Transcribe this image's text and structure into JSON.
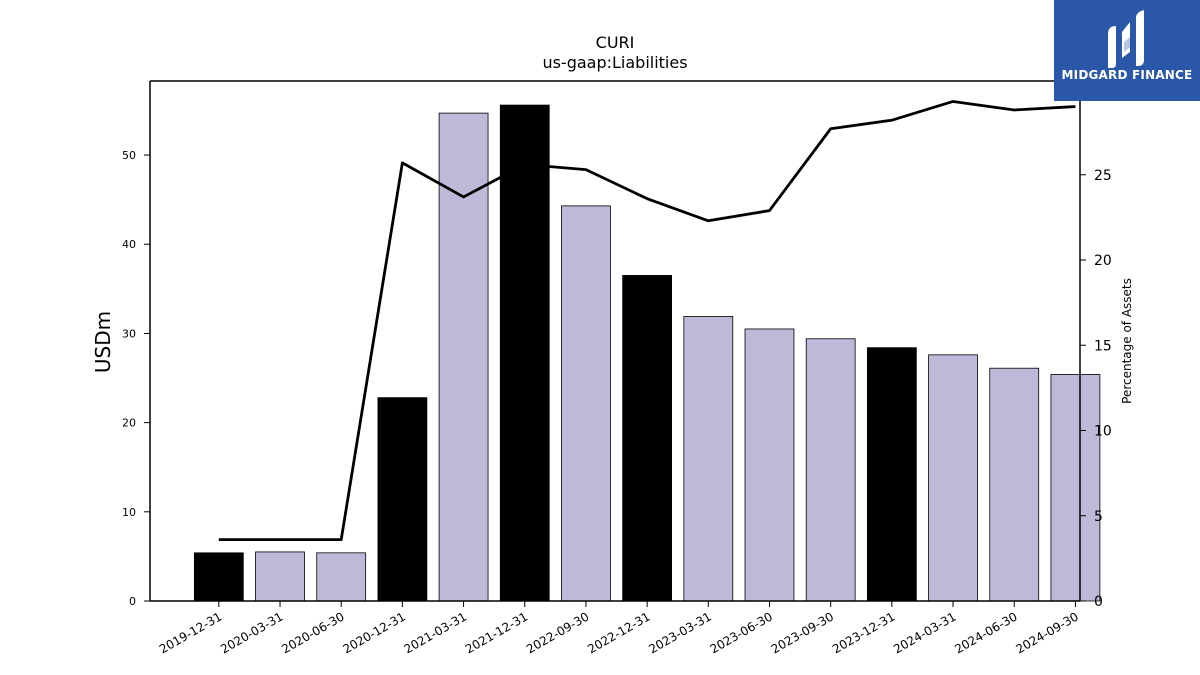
{
  "chart_data": {
    "type": "bar",
    "title": "CURI",
    "subtitle": "us-gaap:Liabilities",
    "ylabel": "USDm",
    "y2label": "Percentage of Assets",
    "categories": [
      "2019-12-31",
      "2020-03-31",
      "2020-06-30",
      "2020-12-31",
      "2021-03-31",
      "2021-12-31",
      "2022-09-30",
      "2022-12-31",
      "2023-03-31",
      "2023-06-30",
      "2023-09-30",
      "2023-12-31",
      "2024-03-31",
      "2024-06-30",
      "2024-09-30"
    ],
    "series": [
      {
        "type": "bar",
        "axis": "left",
        "values": [
          5.4,
          5.5,
          5.4,
          22.8,
          54.7,
          55.6,
          44.3,
          36.5,
          31.9,
          30.5,
          29.4,
          28.4,
          27.6,
          26.1,
          25.4
        ],
        "colors": [
          "#000000",
          "#bdbad9",
          "#bdbad9",
          "#000000",
          "#bdbad9",
          "#000000",
          "#bdbad9",
          "#000000",
          "#bdbad9",
          "#bdbad9",
          "#bdbad9",
          "#000000",
          "#bdbad9",
          "#bdbad9",
          "#bdbad9"
        ]
      },
      {
        "type": "line",
        "axis": "right",
        "color": "#000000",
        "values": [
          3.6,
          3.6,
          3.6,
          25.7,
          23.7,
          25.6,
          25.3,
          23.6,
          22.3,
          22.9,
          27.7,
          28.2,
          29.3,
          28.8,
          29.0
        ]
      }
    ],
    "yticks": [
      0,
      10,
      20,
      30,
      40,
      50
    ],
    "ylim": [
      0,
      58.3
    ],
    "y2ticks": [
      0,
      5,
      10,
      15,
      20,
      25
    ],
    "y2lim": [
      0,
      30.5
    ],
    "grid": false,
    "legend": "none"
  },
  "logo": {
    "text": "MIDGARD FINANCE",
    "background": "#2b57a8"
  }
}
